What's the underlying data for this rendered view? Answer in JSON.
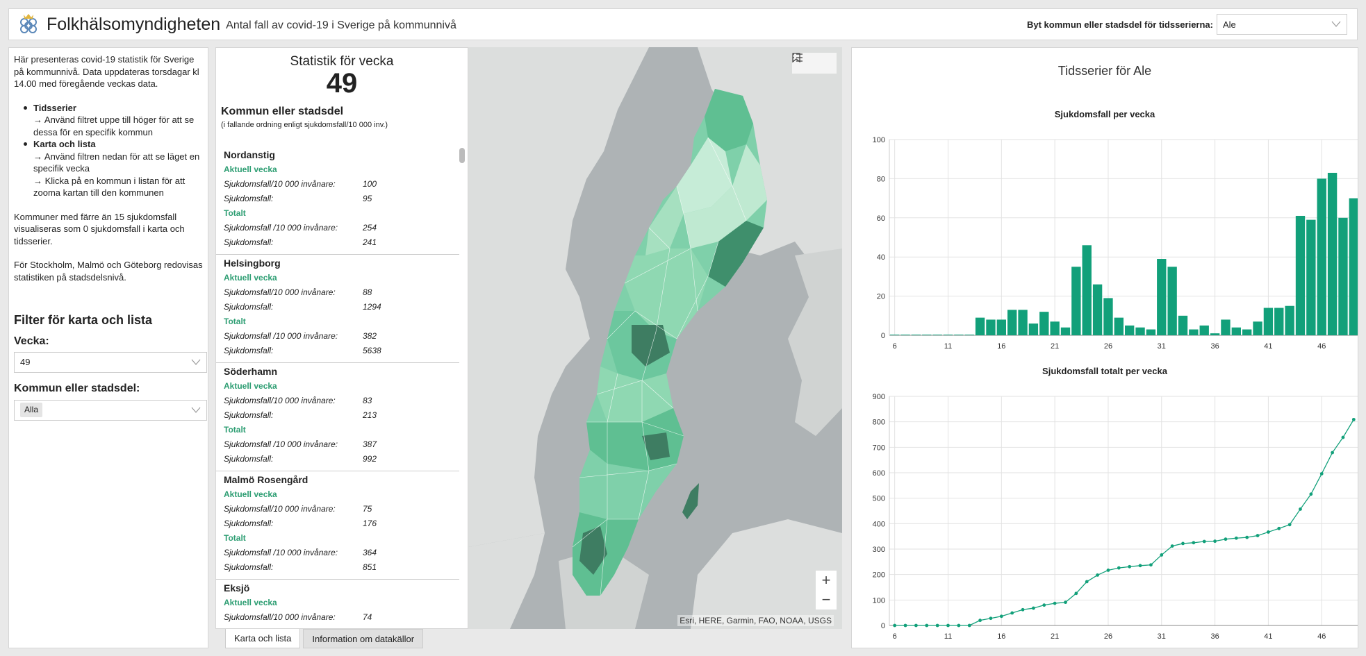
{
  "header": {
    "brand": "Folkhälsomyndigheten",
    "subtitle": "Antal fall av covid-19 i Sverige på kommunnivå",
    "selector_label": "Byt kommun eller stadsdel för tidsserierna:",
    "selector_value": "Ale"
  },
  "left": {
    "intro": "Här presenteras covid-19 statistik för Sverige på kommunnivå. Data uppdateras torsdagar kl 14.00 med föregående veckas data.",
    "bullets": [
      {
        "title": "Tidsserier",
        "lines": [
          "→ Använd filtret uppe till höger för att se dessa för en specifik kommun"
        ]
      },
      {
        "title": "Karta och lista",
        "lines": [
          "→ Använd filtren nedan för att se läget en specifik vecka",
          "→ Klicka på en kommun i listan för att zooma kartan till den kommunen"
        ]
      }
    ],
    "note1": "Kommuner med färre än 15 sjukdomsfall visualiseras som 0 sjukdomsfall i karta och tidsserier.",
    "note2": "För Stockholm, Malmö och Göteborg redovisas statistiken på stadsdelsnivå.",
    "filter_heading": "Filter för karta och lista",
    "week_label": "Vecka:",
    "week_value": "49",
    "kommun_label": "Kommun eller stadsdel:",
    "kommun_value": "Alla"
  },
  "list": {
    "title": "Statistik för vecka",
    "week": "49",
    "heading": "Kommun eller stadsdel",
    "subheading": "(i fallande ordning enligt sjukdomsfall/10 000 inv.)",
    "current_label": "Aktuell vecka",
    "total_label": "Totalt",
    "items": [
      {
        "name": "Nordanstig",
        "rows": [
          [
            "Sjukdomsfall/10 000 invånare:",
            "100"
          ],
          [
            "Sjukdomsfall:",
            "95"
          ]
        ],
        "total_rows": [
          [
            "Sjukdomsfall /10 000 invånare:",
            "254"
          ],
          [
            "Sjukdomsfall:",
            "241"
          ]
        ]
      },
      {
        "name": "Helsingborg",
        "rows": [
          [
            "Sjukdomsfall/10 000 invånare:",
            "88"
          ],
          [
            "Sjukdomsfall:",
            "1294"
          ]
        ],
        "total_rows": [
          [
            "Sjukdomsfall /10 000 invånare:",
            "382"
          ],
          [
            "Sjukdomsfall:",
            "5638"
          ]
        ]
      },
      {
        "name": "Söderhamn",
        "rows": [
          [
            "Sjukdomsfall/10 000 invånare:",
            "83"
          ],
          [
            "Sjukdomsfall:",
            "213"
          ]
        ],
        "total_rows": [
          [
            "Sjukdomsfall /10 000 invånare:",
            "387"
          ],
          [
            "Sjukdomsfall:",
            "992"
          ]
        ]
      },
      {
        "name": "Malmö Rosengård",
        "rows": [
          [
            "Sjukdomsfall/10 000 invånare:",
            "75"
          ],
          [
            "Sjukdomsfall:",
            "176"
          ]
        ],
        "total_rows": [
          [
            "Sjukdomsfall /10 000 invånare:",
            "364"
          ],
          [
            "Sjukdomsfall:",
            "851"
          ]
        ]
      },
      {
        "name": "Eksjö",
        "rows": [
          [
            "Sjukdomsfall/10 000 invånare:",
            "74"
          ]
        ],
        "total_rows": []
      }
    ]
  },
  "tabs": [
    "Karta och lista",
    "Information om datakällor"
  ],
  "map": {
    "attribution": "Esri, HERE, Garmin, FAO, NOAA, USGS",
    "zoom_in": "+",
    "zoom_out": "−",
    "icons": [
      "bookmark-icon",
      "legend-list-icon"
    ]
  },
  "timeseries": {
    "title": "Tidsserier för Ale"
  },
  "chart_data": [
    {
      "type": "bar",
      "title": "Sjukdomsfall per vecka",
      "x": [
        6,
        7,
        8,
        9,
        10,
        11,
        12,
        13,
        14,
        15,
        16,
        17,
        18,
        19,
        20,
        21,
        22,
        23,
        24,
        25,
        26,
        27,
        28,
        29,
        30,
        31,
        32,
        33,
        34,
        35,
        36,
        37,
        38,
        39,
        40,
        41,
        42,
        43,
        44,
        45,
        46,
        47,
        48,
        49
      ],
      "values": [
        0,
        0,
        0,
        0,
        0,
        0,
        0,
        0,
        9,
        8,
        8,
        13,
        13,
        6,
        12,
        7,
        4,
        35,
        46,
        26,
        19,
        9,
        5,
        4,
        3,
        39,
        35,
        10,
        3,
        5,
        1,
        8,
        4,
        3,
        7,
        14,
        14,
        15,
        61,
        59,
        80,
        83,
        60,
        70
      ],
      "xticks": [
        6,
        11,
        16,
        21,
        26,
        31,
        36,
        41,
        46
      ],
      "ylim": [
        0,
        100
      ],
      "yticks": [
        0,
        20,
        40,
        60,
        80,
        100
      ],
      "color": "#12a07a",
      "grid": true
    },
    {
      "type": "line",
      "title": "Sjukdomsfall totalt per vecka",
      "x": [
        6,
        7,
        8,
        9,
        10,
        11,
        12,
        13,
        14,
        15,
        16,
        17,
        18,
        19,
        20,
        21,
        22,
        23,
        24,
        25,
        26,
        27,
        28,
        29,
        30,
        31,
        32,
        33,
        34,
        35,
        36,
        37,
        38,
        39,
        40,
        41,
        42,
        43,
        44,
        45,
        46,
        47,
        48,
        49
      ],
      "values": [
        0,
        0,
        0,
        0,
        0,
        0,
        0,
        0,
        20,
        28,
        36,
        49,
        62,
        68,
        80,
        87,
        91,
        126,
        172,
        198,
        217,
        226,
        231,
        235,
        238,
        277,
        312,
        322,
        325,
        330,
        331,
        339,
        343,
        346,
        353,
        367,
        381,
        396,
        457,
        516,
        596,
        679,
        739,
        809
      ],
      "xticks": [
        6,
        11,
        16,
        21,
        26,
        31,
        36,
        41,
        46
      ],
      "ylim": [
        0,
        900
      ],
      "yticks": [
        0,
        100,
        200,
        300,
        400,
        500,
        600,
        700,
        800,
        900
      ],
      "color": "#12a07a",
      "grid": true
    }
  ]
}
